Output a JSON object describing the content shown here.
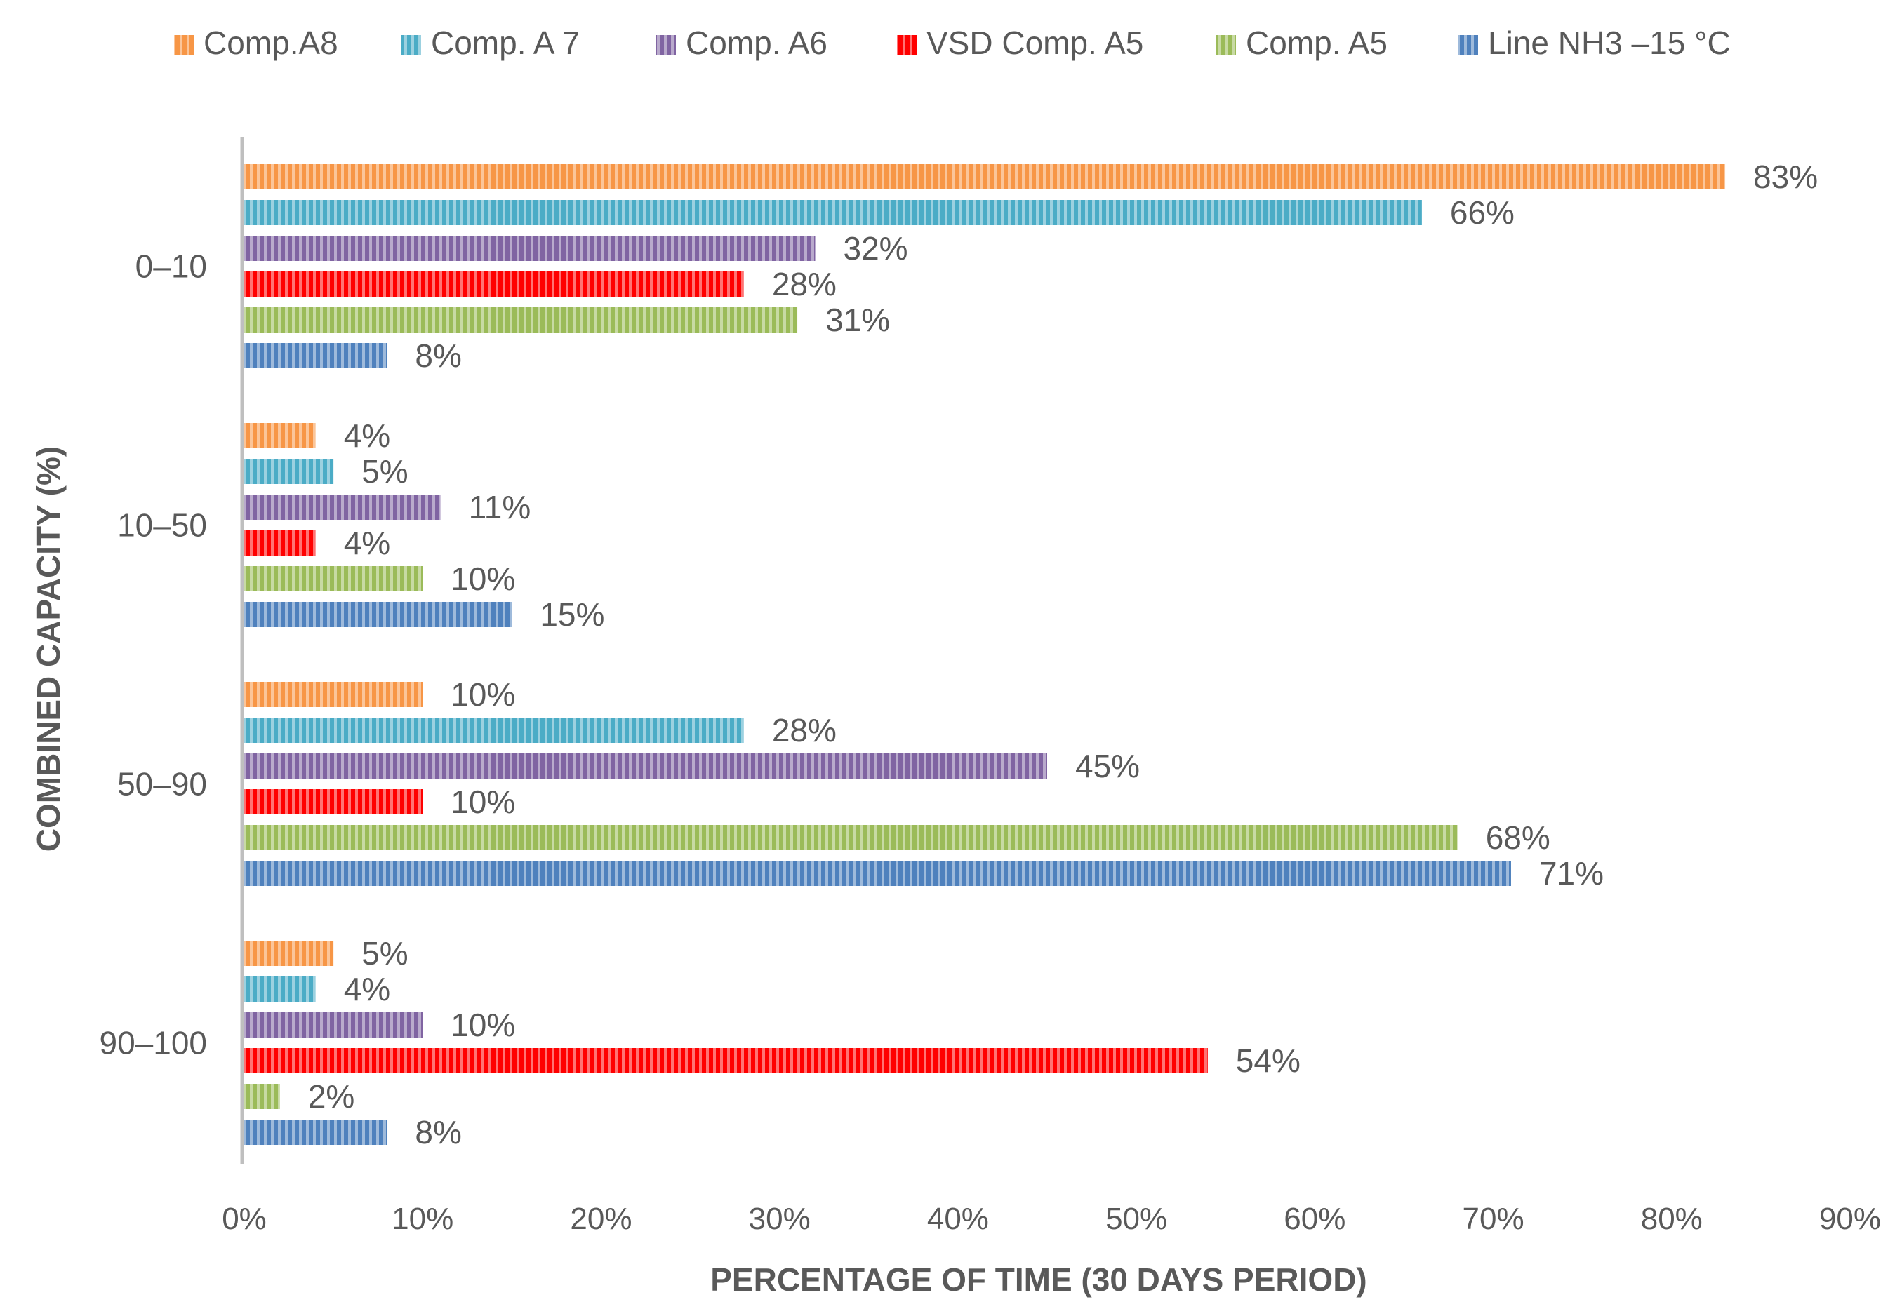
{
  "chart_data": {
    "type": "bar",
    "orientation": "horizontal",
    "title": "",
    "xlabel": "PERCENTAGE OF TIME (30 DAYS PERIOD)",
    "ylabel": "COMBINED CAPACITY (%)",
    "xlim": [
      0,
      90
    ],
    "xticks": [
      0,
      10,
      20,
      30,
      40,
      50,
      60,
      70,
      80,
      90
    ],
    "tick_suffix": "%",
    "grid": false,
    "legend_position": "top",
    "categories": [
      "0–10",
      "10–50",
      "50–90",
      "90–100"
    ],
    "series": [
      {
        "name": "Comp.A8",
        "color": "#f79646",
        "values": [
          83,
          4,
          10,
          5
        ]
      },
      {
        "name": "Comp. A 7",
        "color": "#4bacc6",
        "values": [
          66,
          5,
          28,
          4
        ]
      },
      {
        "name": "Comp. A6",
        "color": "#8064a2",
        "values": [
          32,
          11,
          45,
          10
        ]
      },
      {
        "name": "VSD Comp. A5",
        "color": "#ff0000",
        "values": [
          28,
          4,
          10,
          54
        ]
      },
      {
        "name": "Comp. A5",
        "color": "#9bbb59",
        "values": [
          31,
          10,
          68,
          2
        ]
      },
      {
        "name": "Line NH3 –15 °C",
        "color": "#4f81bd",
        "values": [
          8,
          15,
          71,
          8
        ]
      }
    ]
  }
}
